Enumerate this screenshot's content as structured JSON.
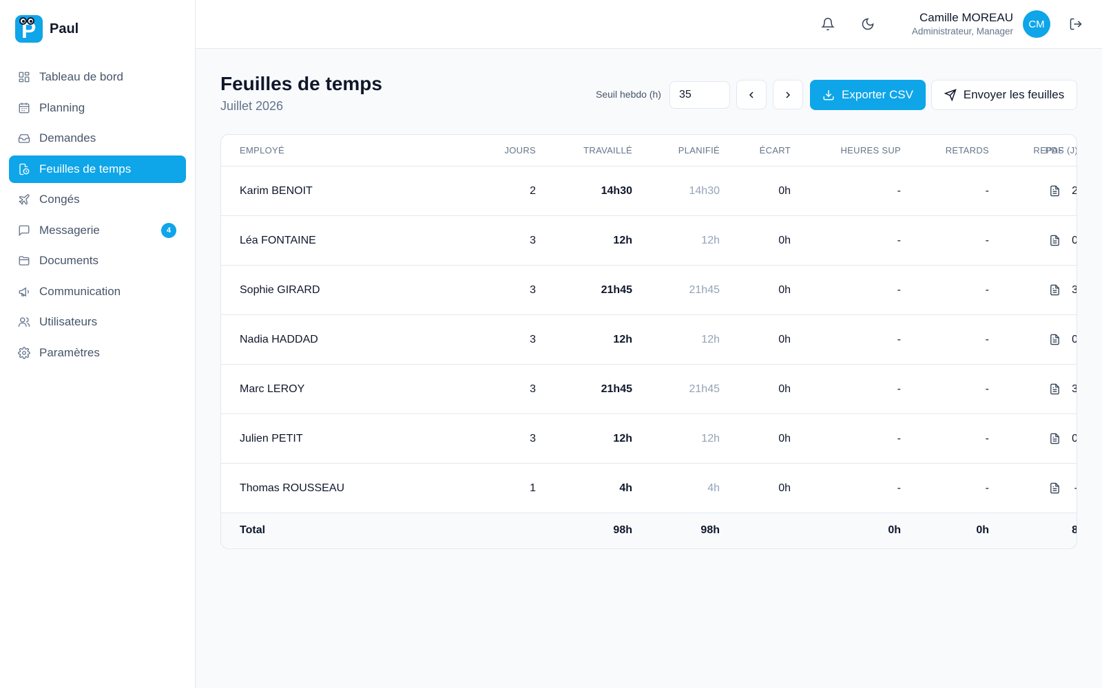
{
  "brand": {
    "name": "Paul"
  },
  "sidebar": {
    "items": [
      {
        "label": "Tableau de bord",
        "icon": "dashboard-icon"
      },
      {
        "label": "Planning",
        "icon": "calendar-icon"
      },
      {
        "label": "Demandes",
        "icon": "inbox-icon"
      },
      {
        "label": "Feuilles de temps",
        "icon": "timesheet-icon",
        "active": true
      },
      {
        "label": "Congés",
        "icon": "plane-icon"
      },
      {
        "label": "Messagerie",
        "icon": "message-icon",
        "badge": "4"
      },
      {
        "label": "Documents",
        "icon": "folder-icon"
      },
      {
        "label": "Communication",
        "icon": "megaphone-icon"
      },
      {
        "label": "Utilisateurs",
        "icon": "users-icon"
      },
      {
        "label": "Paramètres",
        "icon": "gear-icon"
      }
    ]
  },
  "topbar": {
    "user_name": "Camille MOREAU",
    "user_role": "Administrateur, Manager",
    "avatar_initials": "CM"
  },
  "page": {
    "title": "Feuilles de temps",
    "subtitle": "Juillet 2026",
    "threshold_label": "Seuil hebdo (h)",
    "threshold_value": "35",
    "export_label": "Exporter CSV",
    "send_label": "Envoyer les feuilles"
  },
  "colors": {
    "accent": "#0ea5e9",
    "text": "#0f172a",
    "muted": "#64748b",
    "border": "#e2e8f0"
  },
  "table": {
    "headers": {
      "employee": "EMPLOYÉ",
      "days": "JOURS",
      "worked": "TRAVAILLÉ",
      "planned": "PLANIFIÉ",
      "gap": "ÉCART",
      "overtime": "HEURES SUP",
      "late": "RETARDS",
      "meals": "REPAS (J)",
      "pdf": "PDF"
    },
    "rows": [
      {
        "employee": "Karim BENOIT",
        "days": "2",
        "worked": "14h30",
        "planned": "14h30",
        "gap": "0h",
        "overtime": "-",
        "late": "-",
        "meals": "2"
      },
      {
        "employee": "Léa FONTAINE",
        "days": "3",
        "worked": "12h",
        "planned": "12h",
        "gap": "0h",
        "overtime": "-",
        "late": "-",
        "meals": "0"
      },
      {
        "employee": "Sophie GIRARD",
        "days": "3",
        "worked": "21h45",
        "planned": "21h45",
        "gap": "0h",
        "overtime": "-",
        "late": "-",
        "meals": "3"
      },
      {
        "employee": "Nadia HADDAD",
        "days": "3",
        "worked": "12h",
        "planned": "12h",
        "gap": "0h",
        "overtime": "-",
        "late": "-",
        "meals": "0"
      },
      {
        "employee": "Marc LEROY",
        "days": "3",
        "worked": "21h45",
        "planned": "21h45",
        "gap": "0h",
        "overtime": "-",
        "late": "-",
        "meals": "3"
      },
      {
        "employee": "Julien PETIT",
        "days": "3",
        "worked": "12h",
        "planned": "12h",
        "gap": "0h",
        "overtime": "-",
        "late": "-",
        "meals": "0"
      },
      {
        "employee": "Thomas ROUSSEAU",
        "days": "1",
        "worked": "4h",
        "planned": "4h",
        "gap": "0h",
        "overtime": "-",
        "late": "-",
        "meals": "-"
      }
    ],
    "total": {
      "label": "Total",
      "worked": "98h",
      "planned": "98h",
      "overtime": "0h",
      "late": "0h",
      "meals": "8"
    }
  }
}
